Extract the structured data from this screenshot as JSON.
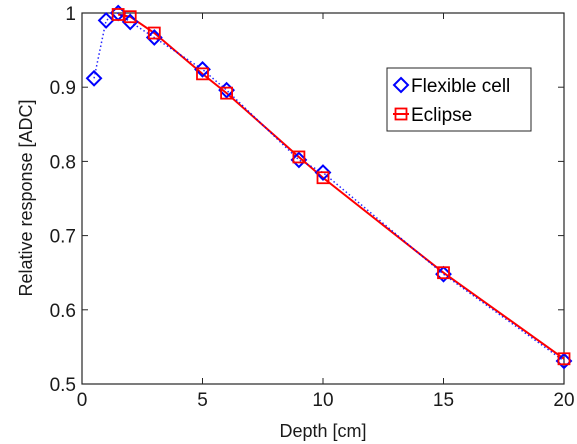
{
  "chart_data": {
    "type": "line",
    "title": "",
    "xlabel": "Depth [cm]",
    "ylabel": "Relative response [ADC]",
    "xlim": [
      0,
      20
    ],
    "ylim": [
      0.5,
      1.0
    ],
    "xticks": [
      0,
      5,
      10,
      15,
      20
    ],
    "yticks": [
      0.5,
      0.6,
      0.7,
      0.8,
      0.9,
      1.0
    ],
    "xtick_labels": [
      "0",
      "5",
      "10",
      "15",
      "20"
    ],
    "ytick_labels": [
      "0.5",
      "0.6",
      "0.7",
      "0.8",
      "0.9",
      "1"
    ],
    "grid": false,
    "legend_position": "top-right",
    "series": [
      {
        "name": "Flexible cell",
        "color": "#0000ff",
        "marker": "diamond",
        "line_style": "dotted",
        "x": [
          0.5,
          1.0,
          1.5,
          2.0,
          3.0,
          5.0,
          6.0,
          9.0,
          10.0,
          15.0,
          20.0
        ],
        "y": [
          0.912,
          0.99,
          1.0,
          0.988,
          0.967,
          0.924,
          0.896,
          0.802,
          0.785,
          0.648,
          0.531
        ]
      },
      {
        "name": "Eclipse",
        "color": "#ff0000",
        "marker": "square",
        "line_style": "solid",
        "x": [
          1.5,
          2.0,
          3.0,
          5.0,
          6.0,
          9.0,
          10.0,
          15.0,
          20.0
        ],
        "y": [
          0.998,
          0.995,
          0.973,
          0.918,
          0.892,
          0.806,
          0.778,
          0.65,
          0.534
        ]
      }
    ]
  }
}
